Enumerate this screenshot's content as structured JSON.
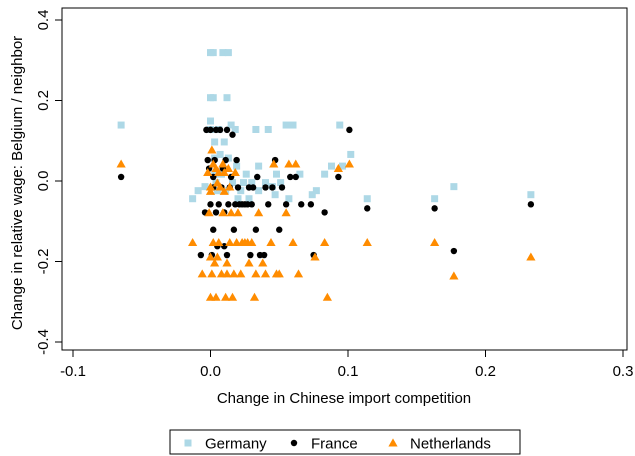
{
  "chart_data": {
    "type": "scatter",
    "xlabel": "Change in Chinese import competition",
    "ylabel": "Change in relative wage: Belgium / neighbor",
    "xlim": [
      -0.1,
      0.3
    ],
    "ylim": [
      -0.4,
      0.4
    ],
    "x_ticks": [
      "-0.1",
      "0.0",
      "0.1",
      "0.2",
      "0.3"
    ],
    "y_ticks": [
      "-0.4",
      "-0.2",
      "0.0",
      "0.2",
      "0.4"
    ],
    "grid": false,
    "legend_position": "bottom",
    "series": [
      {
        "name": "Germany",
        "marker": "square",
        "color": "#add8e6",
        "points": [
          [
            -0.065,
            0.139
          ],
          [
            -0.013,
            -0.044
          ],
          [
            -0.009,
            -0.024
          ],
          [
            -0.004,
            -0.014
          ],
          [
            0.0,
            0.319
          ],
          [
            0.0,
            0.207
          ],
          [
            0.0,
            0.149
          ],
          [
            0.0,
            0.128
          ],
          [
            0.002,
            0.319
          ],
          [
            0.002,
            0.207
          ],
          [
            0.003,
            0.097
          ],
          [
            0.003,
            0.057
          ],
          [
            0.003,
            0.017
          ],
          [
            0.004,
            -0.004
          ],
          [
            0.005,
            -0.024
          ],
          [
            0.006,
            0.128
          ],
          [
            0.007,
            0.066
          ],
          [
            0.008,
            0.017
          ],
          [
            0.009,
            0.319
          ],
          [
            0.01,
            0.097
          ],
          [
            0.011,
            -0.024
          ],
          [
            0.012,
            0.207
          ],
          [
            0.013,
            0.319
          ],
          [
            0.013,
            0.057
          ],
          [
            0.015,
            0.139
          ],
          [
            0.016,
            -0.004
          ],
          [
            0.018,
            0.128
          ],
          [
            0.019,
            0.037
          ],
          [
            0.02,
            -0.044
          ],
          [
            0.022,
            -0.024
          ],
          [
            0.024,
            -0.004
          ],
          [
            0.026,
            0.017
          ],
          [
            0.028,
            -0.044
          ],
          [
            0.03,
            -0.004
          ],
          [
            0.033,
            0.128
          ],
          [
            0.035,
            0.037
          ],
          [
            0.035,
            -0.024
          ],
          [
            0.04,
            -0.004
          ],
          [
            0.042,
            0.128
          ],
          [
            0.045,
            -0.014
          ],
          [
            0.047,
            -0.034
          ],
          [
            0.048,
            0.017
          ],
          [
            0.051,
            -0.004
          ],
          [
            0.055,
            0.139
          ],
          [
            0.057,
            -0.044
          ],
          [
            0.06,
            0.139
          ],
          [
            0.065,
            0.017
          ],
          [
            0.074,
            -0.034
          ],
          [
            0.077,
            -0.024
          ],
          [
            0.083,
            0.017
          ],
          [
            0.088,
            0.037
          ],
          [
            0.094,
            0.139
          ],
          [
            0.096,
            0.037
          ],
          [
            0.102,
            0.066
          ],
          [
            0.114,
            -0.044
          ],
          [
            0.163,
            -0.044
          ],
          [
            0.177,
            -0.014
          ],
          [
            0.233,
            -0.034
          ]
        ]
      },
      {
        "name": "France",
        "marker": "circle",
        "color": "#000000",
        "points": [
          [
            -0.065,
            0.01
          ],
          [
            -0.007,
            -0.184
          ],
          [
            -0.004,
            -0.078
          ],
          [
            -0.003,
            0.127
          ],
          [
            -0.002,
            0.052
          ],
          [
            -0.001,
            0.031
          ],
          [
            0.0,
            0.127
          ],
          [
            0.0,
            -0.058
          ],
          [
            0.001,
            -0.184
          ],
          [
            0.002,
            0.01
          ],
          [
            0.002,
            -0.016
          ],
          [
            0.002,
            -0.121
          ],
          [
            0.003,
            0.052
          ],
          [
            0.004,
            0.127
          ],
          [
            0.004,
            -0.078
          ],
          [
            0.005,
            -0.162
          ],
          [
            0.006,
            -0.058
          ],
          [
            0.007,
            0.127
          ],
          [
            0.008,
            -0.016
          ],
          [
            0.009,
            0.031
          ],
          [
            0.01,
            -0.078
          ],
          [
            0.01,
            -0.162
          ],
          [
            0.011,
            0.052
          ],
          [
            0.012,
            0.127
          ],
          [
            0.012,
            -0.184
          ],
          [
            0.013,
            -0.058
          ],
          [
            0.014,
            -0.016
          ],
          [
            0.015,
            0.01
          ],
          [
            0.016,
            0.115
          ],
          [
            0.017,
            -0.121
          ],
          [
            0.018,
            -0.058
          ],
          [
            0.019,
            0.052
          ],
          [
            0.02,
            -0.016
          ],
          [
            0.021,
            -0.058
          ],
          [
            0.023,
            -0.058
          ],
          [
            0.025,
            -0.058
          ],
          [
            0.027,
            -0.058
          ],
          [
            0.028,
            -0.016
          ],
          [
            0.029,
            -0.184
          ],
          [
            0.03,
            -0.058
          ],
          [
            0.031,
            -0.016
          ],
          [
            0.033,
            -0.121
          ],
          [
            0.034,
            0.01
          ],
          [
            0.036,
            -0.184
          ],
          [
            0.039,
            -0.184
          ],
          [
            0.04,
            -0.016
          ],
          [
            0.042,
            -0.058
          ],
          [
            0.045,
            -0.016
          ],
          [
            0.047,
            0.052
          ],
          [
            0.05,
            -0.121
          ],
          [
            0.052,
            -0.016
          ],
          [
            0.055,
            -0.058
          ],
          [
            0.058,
            0.01
          ],
          [
            0.062,
            0.01
          ],
          [
            0.066,
            -0.058
          ],
          [
            0.073,
            -0.058
          ],
          [
            0.075,
            -0.184
          ],
          [
            0.083,
            -0.078
          ],
          [
            0.093,
            0.01
          ],
          [
            0.101,
            0.127
          ],
          [
            0.114,
            -0.068
          ],
          [
            0.163,
            -0.068
          ],
          [
            0.177,
            -0.174
          ],
          [
            0.233,
            -0.058
          ]
        ]
      },
      {
        "name": "Netherlands",
        "marker": "triangle",
        "color": "#ff8c00",
        "points": [
          [
            -0.065,
            0.042
          ],
          [
            -0.013,
            -0.153
          ],
          [
            -0.006,
            -0.231
          ],
          [
            -0.002,
            0.021
          ],
          [
            -0.001,
            -0.079
          ],
          [
            0.0,
            -0.289
          ],
          [
            0.0,
            -0.189
          ],
          [
            0.0,
            -0.015
          ],
          [
            0.0,
            -0.026
          ],
          [
            0.001,
            0.077
          ],
          [
            0.001,
            -0.231
          ],
          [
            0.002,
            -0.153
          ],
          [
            0.002,
            0.042
          ],
          [
            0.003,
            -0.204
          ],
          [
            0.004,
            0.031
          ],
          [
            0.004,
            -0.289
          ],
          [
            0.005,
            -0.005
          ],
          [
            0.005,
            -0.189
          ],
          [
            0.006,
            -0.153
          ],
          [
            0.006,
            0.021
          ],
          [
            0.007,
            -0.015
          ],
          [
            0.008,
            -0.231
          ],
          [
            0.009,
            -0.079
          ],
          [
            0.009,
            0.042
          ],
          [
            0.01,
            -0.026
          ],
          [
            0.01,
            0.021
          ],
          [
            0.011,
            -0.289
          ],
          [
            0.012,
            -0.231
          ],
          [
            0.012,
            -0.204
          ],
          [
            0.013,
            0.031
          ],
          [
            0.014,
            -0.153
          ],
          [
            0.014,
            -0.015
          ],
          [
            0.015,
            -0.079
          ],
          [
            0.016,
            -0.289
          ],
          [
            0.017,
            -0.231
          ],
          [
            0.018,
            0.021
          ],
          [
            0.019,
            -0.153
          ],
          [
            0.02,
            -0.079
          ],
          [
            0.022,
            -0.231
          ],
          [
            0.023,
            -0.153
          ],
          [
            0.025,
            -0.153
          ],
          [
            0.027,
            -0.153
          ],
          [
            0.028,
            -0.204
          ],
          [
            0.03,
            -0.153
          ],
          [
            0.032,
            -0.289
          ],
          [
            0.033,
            -0.231
          ],
          [
            0.035,
            -0.079
          ],
          [
            0.038,
            -0.204
          ],
          [
            0.04,
            -0.231
          ],
          [
            0.044,
            -0.153
          ],
          [
            0.046,
            0.042
          ],
          [
            0.048,
            -0.231
          ],
          [
            0.05,
            -0.231
          ],
          [
            0.055,
            -0.079
          ],
          [
            0.057,
            0.042
          ],
          [
            0.06,
            -0.153
          ],
          [
            0.062,
            0.042
          ],
          [
            0.064,
            -0.231
          ],
          [
            0.076,
            -0.189
          ],
          [
            0.083,
            -0.153
          ],
          [
            0.085,
            -0.289
          ],
          [
            0.093,
            0.031
          ],
          [
            0.101,
            0.042
          ],
          [
            0.114,
            -0.153
          ],
          [
            0.163,
            -0.153
          ],
          [
            0.177,
            -0.236
          ],
          [
            0.233,
            -0.189
          ]
        ]
      }
    ]
  }
}
